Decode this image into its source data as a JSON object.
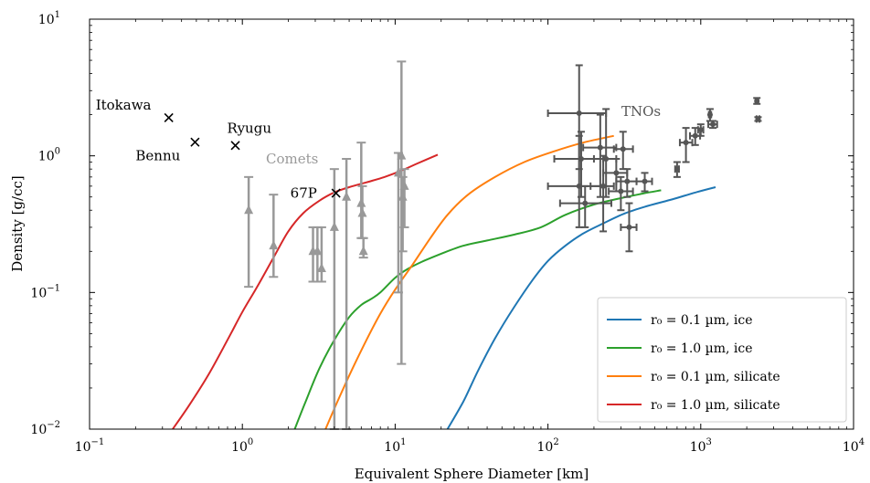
{
  "chart_data": {
    "type": "scatter",
    "xlabel": "Equivalent Sphere Diameter [km]",
    "ylabel": "Density [g/cc]",
    "xscale": "log",
    "yscale": "log",
    "xlim": [
      0.1,
      10000
    ],
    "ylim": [
      0.01,
      10
    ],
    "x_ticks": [
      {
        "v": 0.1,
        "base": "10",
        "exp": "−1"
      },
      {
        "v": 1,
        "base": "10",
        "exp": "0"
      },
      {
        "v": 10,
        "base": "10",
        "exp": "1"
      },
      {
        "v": 100,
        "base": "10",
        "exp": "2"
      },
      {
        "v": 1000,
        "base": "10",
        "exp": "3"
      },
      {
        "v": 10000,
        "base": "10",
        "exp": "4"
      }
    ],
    "y_ticks": [
      {
        "v": 0.01,
        "base": "10",
        "exp": "−2"
      },
      {
        "v": 0.1,
        "base": "10",
        "exp": "−1"
      },
      {
        "v": 1,
        "base": "10",
        "exp": "0"
      },
      {
        "v": 10,
        "base": "10",
        "exp": "1"
      }
    ],
    "legend_position": "lower-right",
    "series": [
      {
        "name": "r₀ = 0.1 µm, ice",
        "color": "#1f77b4",
        "points": [
          [
            22,
            0.01
          ],
          [
            28,
            0.016
          ],
          [
            35,
            0.027
          ],
          [
            45,
            0.046
          ],
          [
            60,
            0.078
          ],
          [
            80,
            0.125
          ],
          [
            100,
            0.17
          ],
          [
            130,
            0.22
          ],
          [
            170,
            0.27
          ],
          [
            230,
            0.32
          ],
          [
            320,
            0.38
          ],
          [
            450,
            0.43
          ],
          [
            650,
            0.48
          ],
          [
            900,
            0.535
          ],
          [
            1250,
            0.59
          ]
        ]
      },
      {
        "name": "r₀ = 1.0 µm, ice",
        "color": "#2ca02c",
        "points": [
          [
            2.2,
            0.01
          ],
          [
            2.6,
            0.016
          ],
          [
            3.2,
            0.028
          ],
          [
            4.0,
            0.045
          ],
          [
            5.0,
            0.066
          ],
          [
            6.0,
            0.081
          ],
          [
            7.0,
            0.09
          ],
          [
            8.0,
            0.1
          ],
          [
            10,
            0.128
          ],
          [
            12,
            0.148
          ],
          [
            15,
            0.168
          ],
          [
            20,
            0.192
          ],
          [
            28,
            0.22
          ],
          [
            40,
            0.24
          ],
          [
            60,
            0.265
          ],
          [
            90,
            0.3
          ],
          [
            130,
            0.37
          ],
          [
            200,
            0.44
          ],
          [
            300,
            0.49
          ],
          [
            420,
            0.53
          ],
          [
            550,
            0.56
          ]
        ]
      },
      {
        "name": "r₀ = 0.1 µm, silicate",
        "color": "#ff7f0e",
        "points": [
          [
            3.5,
            0.01
          ],
          [
            4.2,
            0.016
          ],
          [
            5.2,
            0.027
          ],
          [
            6.5,
            0.045
          ],
          [
            8,
            0.07
          ],
          [
            10,
            0.105
          ],
          [
            13,
            0.16
          ],
          [
            17,
            0.25
          ],
          [
            22,
            0.37
          ],
          [
            30,
            0.52
          ],
          [
            45,
            0.7
          ],
          [
            70,
            0.9
          ],
          [
            110,
            1.08
          ],
          [
            170,
            1.25
          ],
          [
            270,
            1.4
          ]
        ]
      },
      {
        "name": "r₀ = 1.0 µm, silicate",
        "color": "#d62728",
        "points": [
          [
            0.35,
            0.01
          ],
          [
            0.45,
            0.015
          ],
          [
            0.6,
            0.025
          ],
          [
            0.8,
            0.045
          ],
          [
            1.0,
            0.072
          ],
          [
            1.25,
            0.11
          ],
          [
            1.6,
            0.18
          ],
          [
            2.0,
            0.28
          ],
          [
            2.5,
            0.38
          ],
          [
            3.2,
            0.47
          ],
          [
            4.0,
            0.54
          ],
          [
            5.0,
            0.59
          ],
          [
            6.5,
            0.64
          ],
          [
            8.5,
            0.7
          ],
          [
            11,
            0.78
          ],
          [
            14,
            0.88
          ],
          [
            19,
            1.02
          ]
        ]
      }
    ],
    "asteroids": [
      {
        "name": "Itokawa",
        "x": 0.33,
        "y": 1.9
      },
      {
        "name": "Bennu",
        "x": 0.49,
        "y": 1.26
      },
      {
        "name": "Ryugu",
        "x": 0.9,
        "y": 1.19
      },
      {
        "name": "67P",
        "x": 4.1,
        "y": 0.533
      }
    ],
    "comets_label": "Comets",
    "comets_color": "#999999",
    "comets": [
      {
        "x": 1.1,
        "y": 0.4,
        "lo": 0.11,
        "hi": 0.7
      },
      {
        "x": 1.6,
        "y": 0.22,
        "lo": 0.13,
        "hi": 0.52
      },
      {
        "x": 2.9,
        "y": 0.2,
        "lo": 0.12,
        "hi": 0.3
      },
      {
        "x": 3.1,
        "y": 0.2,
        "lo": 0.12,
        "hi": 0.3
      },
      {
        "x": 3.3,
        "y": 0.15,
        "lo": 0.12,
        "hi": 0.3
      },
      {
        "x": 4.0,
        "y": 0.3,
        "lo": 0.01,
        "hi": 0.8
      },
      {
        "x": 4.8,
        "y": 0.5,
        "lo": 0.01,
        "hi": 0.95
      },
      {
        "x": 6.0,
        "y": 0.45,
        "lo": 0.25,
        "hi": 1.25
      },
      {
        "x": 6.1,
        "y": 0.38,
        "lo": 0.25,
        "hi": 0.6
      },
      {
        "x": 6.2,
        "y": 0.2,
        "lo": 0.18,
        "hi": 0.25
      },
      {
        "x": 10.5,
        "y": 0.75,
        "lo": 0.1,
        "hi": 1.05
      },
      {
        "x": 11.0,
        "y": 1.0,
        "lo": 0.03,
        "hi": 4.9
      },
      {
        "x": 11.2,
        "y": 0.5,
        "lo": 0.2,
        "hi": 0.7
      },
      {
        "x": 11.5,
        "y": 0.6,
        "lo": 0.3,
        "hi": 0.8
      }
    ],
    "tnos_label": "TNOs",
    "tnos_color": "#555555",
    "tnos": [
      {
        "x": 160,
        "y": 2.05,
        "xlo": 100,
        "xhi": 240,
        "ylo": 0.8,
        "yhi": 4.6
      },
      {
        "x": 165,
        "y": 0.95,
        "xlo": 110,
        "xhi": 230,
        "ylo": 0.5,
        "yhi": 1.5
      },
      {
        "x": 160,
        "y": 0.6,
        "xlo": 100,
        "xhi": 230,
        "ylo": 0.3,
        "yhi": 1.4
      },
      {
        "x": 175,
        "y": 0.45,
        "xlo": 120,
        "xhi": 260,
        "ylo": 0.3,
        "yhi": 0.6
      },
      {
        "x": 220,
        "y": 1.15,
        "xlo": 170,
        "xhi": 280,
        "ylo": 0.5,
        "yhi": 2.0
      },
      {
        "x": 240,
        "y": 0.95,
        "xlo": 200,
        "xhi": 280,
        "ylo": 0.5,
        "yhi": 2.2
      },
      {
        "x": 230,
        "y": 0.6,
        "xlo": 190,
        "xhi": 270,
        "ylo": 0.28,
        "yhi": 1.0
      },
      {
        "x": 280,
        "y": 0.75,
        "xlo": 230,
        "xhi": 330,
        "ylo": 0.55,
        "yhi": 0.95
      },
      {
        "x": 300,
        "y": 0.55,
        "xlo": 250,
        "xhi": 360,
        "ylo": 0.4,
        "yhi": 0.7
      },
      {
        "x": 310,
        "y": 1.12,
        "xlo": 270,
        "xhi": 360,
        "ylo": 0.8,
        "yhi": 1.5
      },
      {
        "x": 330,
        "y": 0.65,
        "xlo": 280,
        "xhi": 380,
        "ylo": 0.5,
        "yhi": 0.8
      },
      {
        "x": 340,
        "y": 0.3,
        "xlo": 300,
        "xhi": 380,
        "ylo": 0.2,
        "yhi": 0.45
      },
      {
        "x": 430,
        "y": 0.65,
        "xlo": 380,
        "xhi": 480,
        "ylo": 0.55,
        "yhi": 0.75
      },
      {
        "x": 700,
        "y": 0.8,
        "xlo": 680,
        "xhi": 720,
        "ylo": 0.7,
        "yhi": 0.9
      },
      {
        "x": 800,
        "y": 1.25,
        "xlo": 730,
        "xhi": 880,
        "ylo": 0.9,
        "yhi": 1.6
      },
      {
        "x": 920,
        "y": 1.4,
        "xlo": 850,
        "xhi": 990,
        "ylo": 1.2,
        "yhi": 1.6
      },
      {
        "x": 1000,
        "y": 1.55,
        "xlo": 960,
        "xhi": 1040,
        "ylo": 1.4,
        "yhi": 1.7
      },
      {
        "x": 1150,
        "y": 2.0,
        "xlo": 1130,
        "xhi": 1170,
        "ylo": 1.8,
        "yhi": 2.2
      },
      {
        "x": 1200,
        "y": 1.7,
        "xlo": 1120,
        "xhi": 1280,
        "ylo": 1.6,
        "yhi": 1.8
      },
      {
        "x": 2330,
        "y": 2.52,
        "xlo": 2280,
        "xhi": 2380,
        "ylo": 2.4,
        "yhi": 2.65
      },
      {
        "x": 2370,
        "y": 1.86,
        "xlo": 2320,
        "xhi": 2420,
        "ylo": 1.8,
        "yhi": 1.92
      }
    ]
  }
}
